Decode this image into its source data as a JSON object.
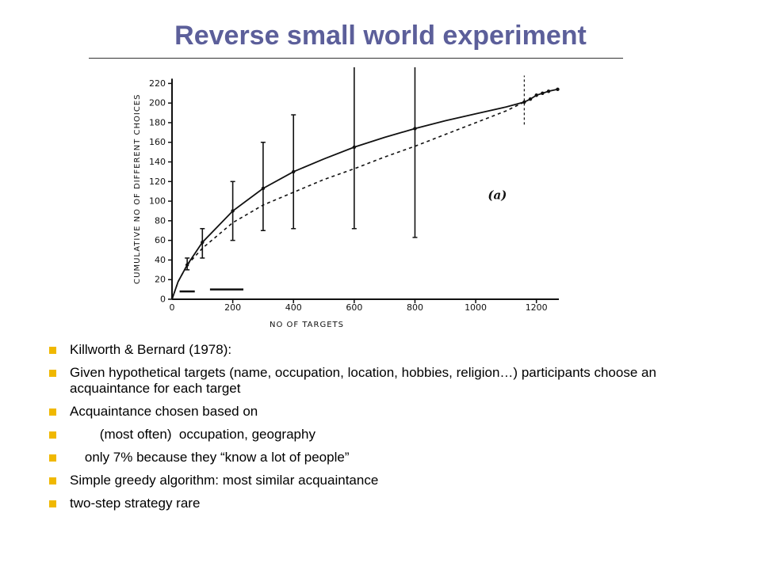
{
  "slide": {
    "title": "Reverse small world experiment"
  },
  "bullets": [
    "Killworth & Bernard (1978):",
    "Given hypothetical targets (name, occupation, location, hobbies, religion…) participants choose an acquaintance for each target",
    "Acquaintance chosen based on",
    "        (most often)  occupation, geography",
    "    only 7% because they “know a lot of people”",
    "Simple greedy algorithm: most similar acquaintance",
    "two-step strategy rare"
  ],
  "colors": {
    "title": "#5c5f9a",
    "bullet": "#f0b800",
    "ink": "#111111"
  },
  "chart_data": {
    "type": "line",
    "xlabel": "NO OF TARGETS",
    "ylabel": "CUMULATIVE NO OF DIFFERENT CHOICES",
    "annotation": "(a)",
    "xlim": [
      0,
      1300
    ],
    "ylim": [
      0,
      230
    ],
    "x_ticks": [
      200,
      400,
      600,
      800,
      1000,
      1200
    ],
    "y_ticks": [
      0,
      20,
      40,
      60,
      80,
      100,
      120,
      140,
      160,
      180,
      200,
      220
    ],
    "series": [
      {
        "style": "solid",
        "x": [
          0,
          20,
          50,
          100,
          200,
          300,
          400,
          500,
          600,
          700,
          800,
          900,
          1000,
          1100,
          1160,
          1180,
          1200,
          1220,
          1240,
          1270
        ],
        "y": [
          0,
          18,
          35,
          58,
          90,
          113,
          130,
          143,
          155,
          165,
          174,
          182,
          189,
          196,
          201,
          204,
          208,
          210,
          212,
          214
        ]
      },
      {
        "style": "dashed",
        "x": [
          0,
          20,
          50,
          100,
          200,
          300,
          400,
          500,
          600,
          700,
          800,
          900,
          1000,
          1100,
          1160
        ],
        "y": [
          0,
          18,
          35,
          52,
          78,
          96,
          109,
          122,
          133,
          145,
          156,
          168,
          180,
          192,
          201
        ]
      }
    ],
    "error_bars": [
      {
        "x": 50,
        "low": 30,
        "high": 42
      },
      {
        "x": 100,
        "low": 42,
        "high": 72
      },
      {
        "x": 200,
        "low": 60,
        "high": 120
      },
      {
        "x": 300,
        "low": 70,
        "high": 160
      },
      {
        "x": 400,
        "low": 72,
        "high": 188
      },
      {
        "x": 600,
        "low": 72,
        "high": 240
      },
      {
        "x": 800,
        "low": 63,
        "high": 280
      }
    ],
    "reference_line": {
      "x": 1160,
      "low": 178,
      "high": 228
    },
    "legend_strokes": [
      {
        "x1": 25,
        "x2": 75,
        "y": 8
      },
      {
        "x1": 125,
        "x2": 235,
        "y": 10
      }
    ]
  }
}
